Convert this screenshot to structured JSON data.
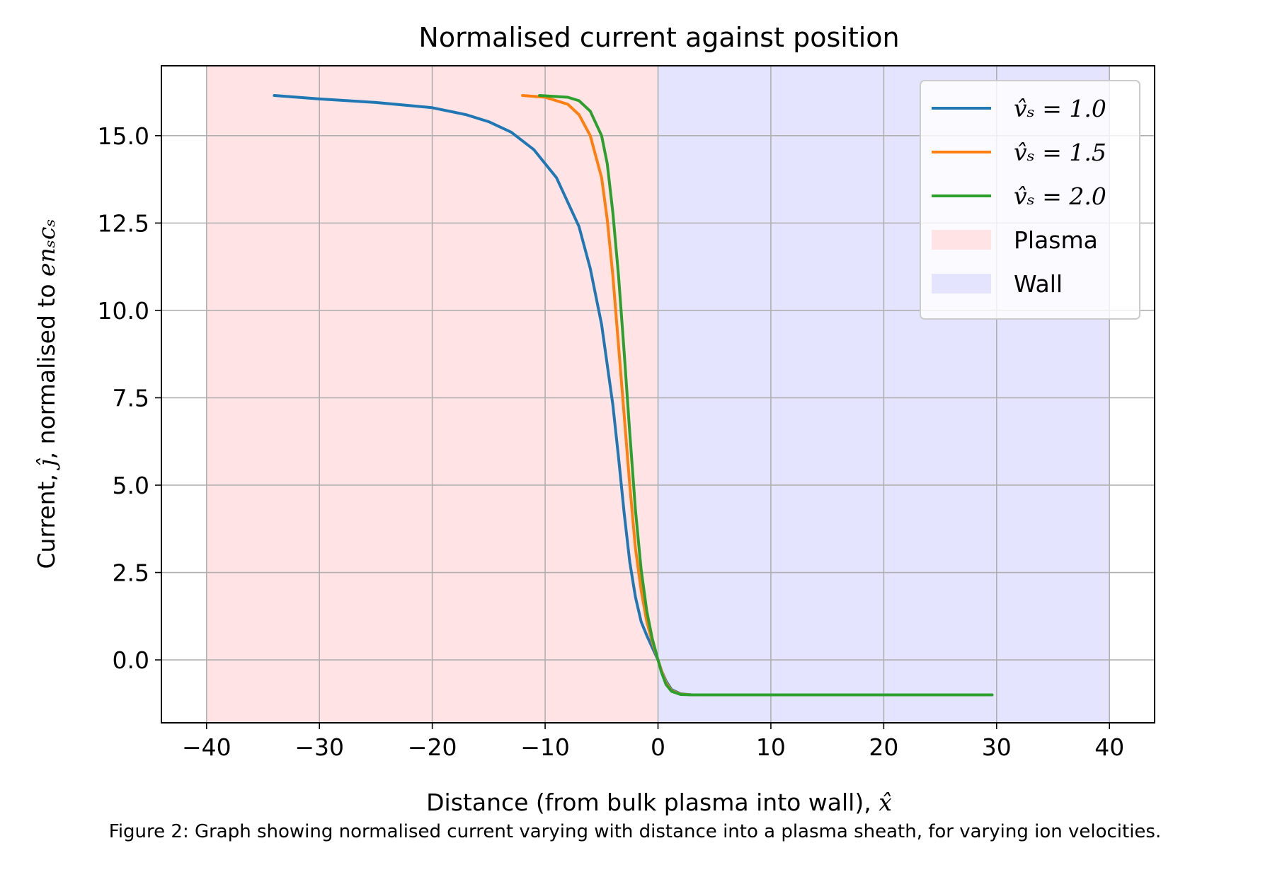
{
  "chart_data": {
    "type": "line",
    "title": "Normalised current against position",
    "xlabel_prefix": "Distance (from bulk plasma into wall), ",
    "xlabel_symbol": "x̂",
    "ylabel_prefix": "Current, ",
    "ylabel_symbol": "ĵ",
    "ylabel_mid": ", normalised to ",
    "ylabel_units": "enₛcₛ",
    "xlim": [
      -44,
      44
    ],
    "ylim": [
      -1.8,
      17
    ],
    "xticks": [
      -40,
      -30,
      -20,
      -10,
      0,
      10,
      20,
      30,
      40
    ],
    "xtick_labels": [
      "−40",
      "−30",
      "−20",
      "−10",
      "0",
      "10",
      "20",
      "30",
      "40"
    ],
    "yticks": [
      0,
      2.5,
      5,
      7.5,
      10,
      12.5,
      15
    ],
    "ytick_labels": [
      "0.0",
      "2.5",
      "5.0",
      "7.5",
      "10.0",
      "12.5",
      "15.0"
    ],
    "grid": true,
    "legend_position": "top-right",
    "regions": [
      {
        "name": "Plasma",
        "x_range": [
          -40,
          0
        ],
        "color": "#ffe3e5"
      },
      {
        "name": "Wall",
        "x_range": [
          0,
          40
        ],
        "color": "#e4e4ff"
      }
    ],
    "series": [
      {
        "name": "v̂ₛ = 1.0",
        "color": "#1f77b4",
        "points": [
          [
            -34,
            16.15
          ],
          [
            -30,
            16.05
          ],
          [
            -25,
            15.95
          ],
          [
            -20,
            15.8
          ],
          [
            -17,
            15.6
          ],
          [
            -15,
            15.4
          ],
          [
            -13,
            15.1
          ],
          [
            -11,
            14.6
          ],
          [
            -9,
            13.8
          ],
          [
            -7,
            12.4
          ],
          [
            -6,
            11.2
          ],
          [
            -5,
            9.6
          ],
          [
            -4,
            7.3
          ],
          [
            -3.5,
            5.8
          ],
          [
            -3,
            4.2
          ],
          [
            -2.5,
            2.8
          ],
          [
            -2,
            1.8
          ],
          [
            -1.5,
            1.1
          ],
          [
            -1,
            0.7
          ],
          [
            -0.5,
            0.35
          ],
          [
            0,
            0.0
          ],
          [
            0.3,
            -0.3
          ],
          [
            0.7,
            -0.6
          ],
          [
            1.2,
            -0.85
          ],
          [
            2,
            -0.97
          ],
          [
            3,
            -1.0
          ],
          [
            10,
            -1.0
          ],
          [
            20,
            -1.0
          ],
          [
            29.6,
            -1.0
          ]
        ]
      },
      {
        "name": "v̂ₛ = 1.5",
        "color": "#ff7f0e",
        "points": [
          [
            -12,
            16.15
          ],
          [
            -10,
            16.1
          ],
          [
            -8,
            15.9
          ],
          [
            -7,
            15.6
          ],
          [
            -6,
            15.0
          ],
          [
            -5,
            13.8
          ],
          [
            -4.5,
            12.6
          ],
          [
            -4,
            11.0
          ],
          [
            -3.5,
            9.0
          ],
          [
            -3,
            7.0
          ],
          [
            -2.5,
            5.0
          ],
          [
            -2,
            3.2
          ],
          [
            -1.5,
            2.0
          ],
          [
            -1,
            1.1
          ],
          [
            -0.5,
            0.5
          ],
          [
            0,
            0.0
          ],
          [
            0.3,
            -0.3
          ],
          [
            0.7,
            -0.65
          ],
          [
            1.2,
            -0.88
          ],
          [
            2,
            -0.98
          ],
          [
            3,
            -1.0
          ],
          [
            10,
            -1.0
          ],
          [
            20,
            -1.0
          ],
          [
            29.6,
            -1.0
          ]
        ]
      },
      {
        "name": "v̂ₛ = 2.0",
        "color": "#2ca02c",
        "points": [
          [
            -10.5,
            16.15
          ],
          [
            -8,
            16.1
          ],
          [
            -7,
            16.0
          ],
          [
            -6,
            15.7
          ],
          [
            -5,
            15.0
          ],
          [
            -4.5,
            14.2
          ],
          [
            -4,
            12.8
          ],
          [
            -3.5,
            11.0
          ],
          [
            -3,
            8.8
          ],
          [
            -2.5,
            6.5
          ],
          [
            -2,
            4.3
          ],
          [
            -1.5,
            2.6
          ],
          [
            -1,
            1.4
          ],
          [
            -0.5,
            0.6
          ],
          [
            0,
            0.0
          ],
          [
            0.3,
            -0.35
          ],
          [
            0.7,
            -0.7
          ],
          [
            1.2,
            -0.9
          ],
          [
            2,
            -0.99
          ],
          [
            3,
            -1.0
          ],
          [
            10,
            -1.0
          ],
          [
            20,
            -1.0
          ],
          [
            29.6,
            -1.0
          ]
        ]
      }
    ],
    "caption": "Figure 2: Graph showing normalised current varying with distance into a plasma sheath, for varying ion velocities."
  }
}
